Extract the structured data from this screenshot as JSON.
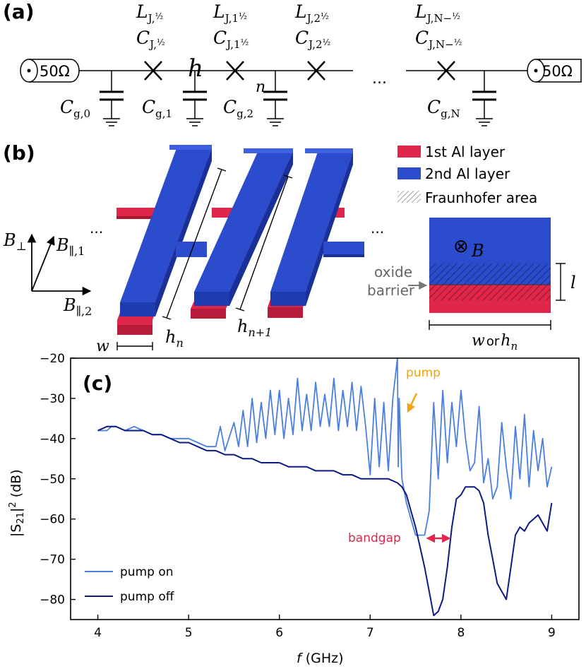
{
  "panel_labels": [
    "(a)",
    "(b)",
    "(c)"
  ],
  "circuit": {
    "port_left": "50Ω",
    "port_right": "50Ω",
    "junction_labels": [
      {
        "L": "L",
        "C": "C",
        "sub": "J,",
        "frac": "½"
      },
      {
        "L": "L",
        "C": "C",
        "sub": "J,1",
        "frac": "½"
      },
      {
        "L": "L",
        "C": "C",
        "sub": "J,2",
        "frac": "½"
      },
      {
        "L": "L",
        "C": "C",
        "sub": "J,N−",
        "frac": "½"
      }
    ],
    "ground_caps": [
      {
        "base": "C",
        "sub": "g,0"
      },
      {
        "base": "C",
        "sub": "g,1"
      },
      {
        "base": "C",
        "sub": "g,2"
      },
      {
        "base": "C",
        "sub": "g,N"
      }
    ],
    "node_h": "h",
    "node_n": "n",
    "ellipsis": "..."
  },
  "geometry": {
    "legend": [
      {
        "label": "1st  Al layer",
        "color": "#e0264a"
      },
      {
        "label": "2nd Al layer",
        "color": "#2b4ccc"
      },
      {
        "label": "Fraunhofer area",
        "color": "#999999"
      }
    ],
    "axes": {
      "perp": "B",
      "perp_sub": "⊥",
      "par1": "B",
      "par1_sub": "∥,1",
      "par2": "B",
      "par2_sub": "∥,2"
    },
    "w_label": "w",
    "hn_label": "h",
    "hn_sub": "n",
    "hn1_sub": "n+1",
    "oxide_label_1": "oxide",
    "oxide_label_2": "barrier",
    "field_symbol": "⊗",
    "field_label": "B",
    "l_label": "l",
    "bottom_label_w": "w",
    "bottom_label_or": "or",
    "bottom_label_h": "h",
    "bottom_label_n": "n",
    "ellipsis": "..."
  },
  "annotations": {
    "pump": "pump",
    "bandgap": "bandgap",
    "pump_color": "#f5a30a",
    "bandgap_color": "#e0264a"
  },
  "chart_data": {
    "type": "line",
    "xlabel_var": "f",
    "xlabel_unit": "(GHz)",
    "ylabel": "|S",
    "ylabel_sub": "21",
    "ylabel_rest": "|",
    "ylabel_sup": "2",
    "ylabel_unit": "(dB)",
    "xlim": [
      3.7,
      9.3
    ],
    "ylim": [
      -85,
      -20
    ],
    "xticks": [
      "4",
      "5",
      "6",
      "7",
      "8",
      "9"
    ],
    "yticks": [
      "−20",
      "−30",
      "−40",
      "−50",
      "−60",
      "−70",
      "−80"
    ],
    "legend_position": "lower-left",
    "series": [
      {
        "name": "pump on",
        "color": "#4a7fe0",
        "x": [
          4.0,
          4.1,
          4.15,
          4.2,
          4.3,
          4.4,
          4.5,
          4.6,
          4.7,
          4.8,
          4.9,
          5.0,
          5.1,
          5.2,
          5.3,
          5.35,
          5.4,
          5.5,
          5.55,
          5.6,
          5.65,
          5.7,
          5.75,
          5.8,
          5.85,
          5.9,
          5.95,
          6.0,
          6.05,
          6.1,
          6.15,
          6.2,
          6.25,
          6.3,
          6.35,
          6.4,
          6.45,
          6.5,
          6.55,
          6.6,
          6.65,
          6.7,
          6.75,
          6.8,
          6.85,
          6.9,
          6.95,
          7.0,
          7.05,
          7.1,
          7.15,
          7.2,
          7.25,
          7.3,
          7.31,
          7.32,
          7.35,
          7.4,
          7.45,
          7.5,
          7.55,
          7.6,
          7.65,
          7.7,
          7.75,
          7.8,
          7.85,
          7.9,
          7.95,
          8.0,
          8.05,
          8.1,
          8.15,
          8.2,
          8.25,
          8.3,
          8.35,
          8.4,
          8.45,
          8.5,
          8.55,
          8.6,
          8.65,
          8.7,
          8.75,
          8.8,
          8.85,
          8.9,
          8.95,
          9.0
        ],
        "y": [
          -38,
          -38,
          -37,
          -37,
          -38,
          -37,
          -38,
          -39,
          -39,
          -40,
          -40,
          -40,
          -41,
          -42,
          -42,
          -37,
          -43,
          -36,
          -42,
          -33,
          -42,
          -30,
          -41,
          -31,
          -40,
          -28,
          -39,
          -28,
          -40,
          -30,
          -39,
          -25,
          -38,
          -29,
          -38,
          -26,
          -37,
          -29,
          -37,
          -25,
          -38,
          -28,
          -37,
          -26,
          -38,
          -27,
          -37,
          -49,
          -30,
          -47,
          -31,
          -48,
          -30,
          -20,
          -47,
          -30,
          -50,
          -56,
          -60,
          -64,
          -64,
          -64,
          -58,
          -31,
          -50,
          -28,
          -46,
          -31,
          -42,
          -28,
          -40,
          -48,
          -46,
          -32,
          -51,
          -45,
          -55,
          -52,
          -36,
          -47,
          -55,
          -37,
          -50,
          -34,
          -52,
          -38,
          -48,
          -40,
          -52,
          -47
        ]
      },
      {
        "name": "pump off",
        "color": "#0d1a80",
        "x": [
          4.0,
          4.1,
          4.2,
          4.3,
          4.4,
          4.5,
          4.6,
          4.7,
          4.8,
          4.9,
          5.0,
          5.1,
          5.2,
          5.3,
          5.4,
          5.5,
          5.6,
          5.7,
          5.8,
          5.9,
          6.0,
          6.1,
          6.2,
          6.3,
          6.4,
          6.5,
          6.6,
          6.7,
          6.8,
          6.9,
          7.0,
          7.1,
          7.2,
          7.3,
          7.35,
          7.4,
          7.45,
          7.5,
          7.55,
          7.6,
          7.65,
          7.7,
          7.75,
          7.8,
          7.85,
          7.9,
          7.95,
          8.0,
          8.05,
          8.1,
          8.15,
          8.2,
          8.25,
          8.3,
          8.35,
          8.4,
          8.45,
          8.5,
          8.55,
          8.6,
          8.65,
          8.7,
          8.75,
          8.8,
          8.85,
          8.9,
          8.95,
          9.0
        ],
        "y": [
          -38,
          -37,
          -37,
          -38,
          -38,
          -38,
          -39,
          -39,
          -40,
          -41,
          -41,
          -42,
          -43,
          -43,
          -44,
          -44,
          -45,
          -45,
          -46,
          -46,
          -46,
          -47,
          -47,
          -47,
          -48,
          -48,
          -48,
          -49,
          -49,
          -50,
          -50,
          -50,
          -50,
          -51,
          -52,
          -54,
          -58,
          -62,
          -67,
          -72,
          -78,
          -84,
          -83,
          -80,
          -72,
          -62,
          -55,
          -54,
          -52,
          -52,
          -52,
          -53,
          -56,
          -64,
          -70,
          -76,
          -78,
          -80,
          -72,
          -64,
          -62,
          -63,
          -61,
          -60,
          -59,
          -61,
          -63,
          -56
        ]
      }
    ]
  }
}
